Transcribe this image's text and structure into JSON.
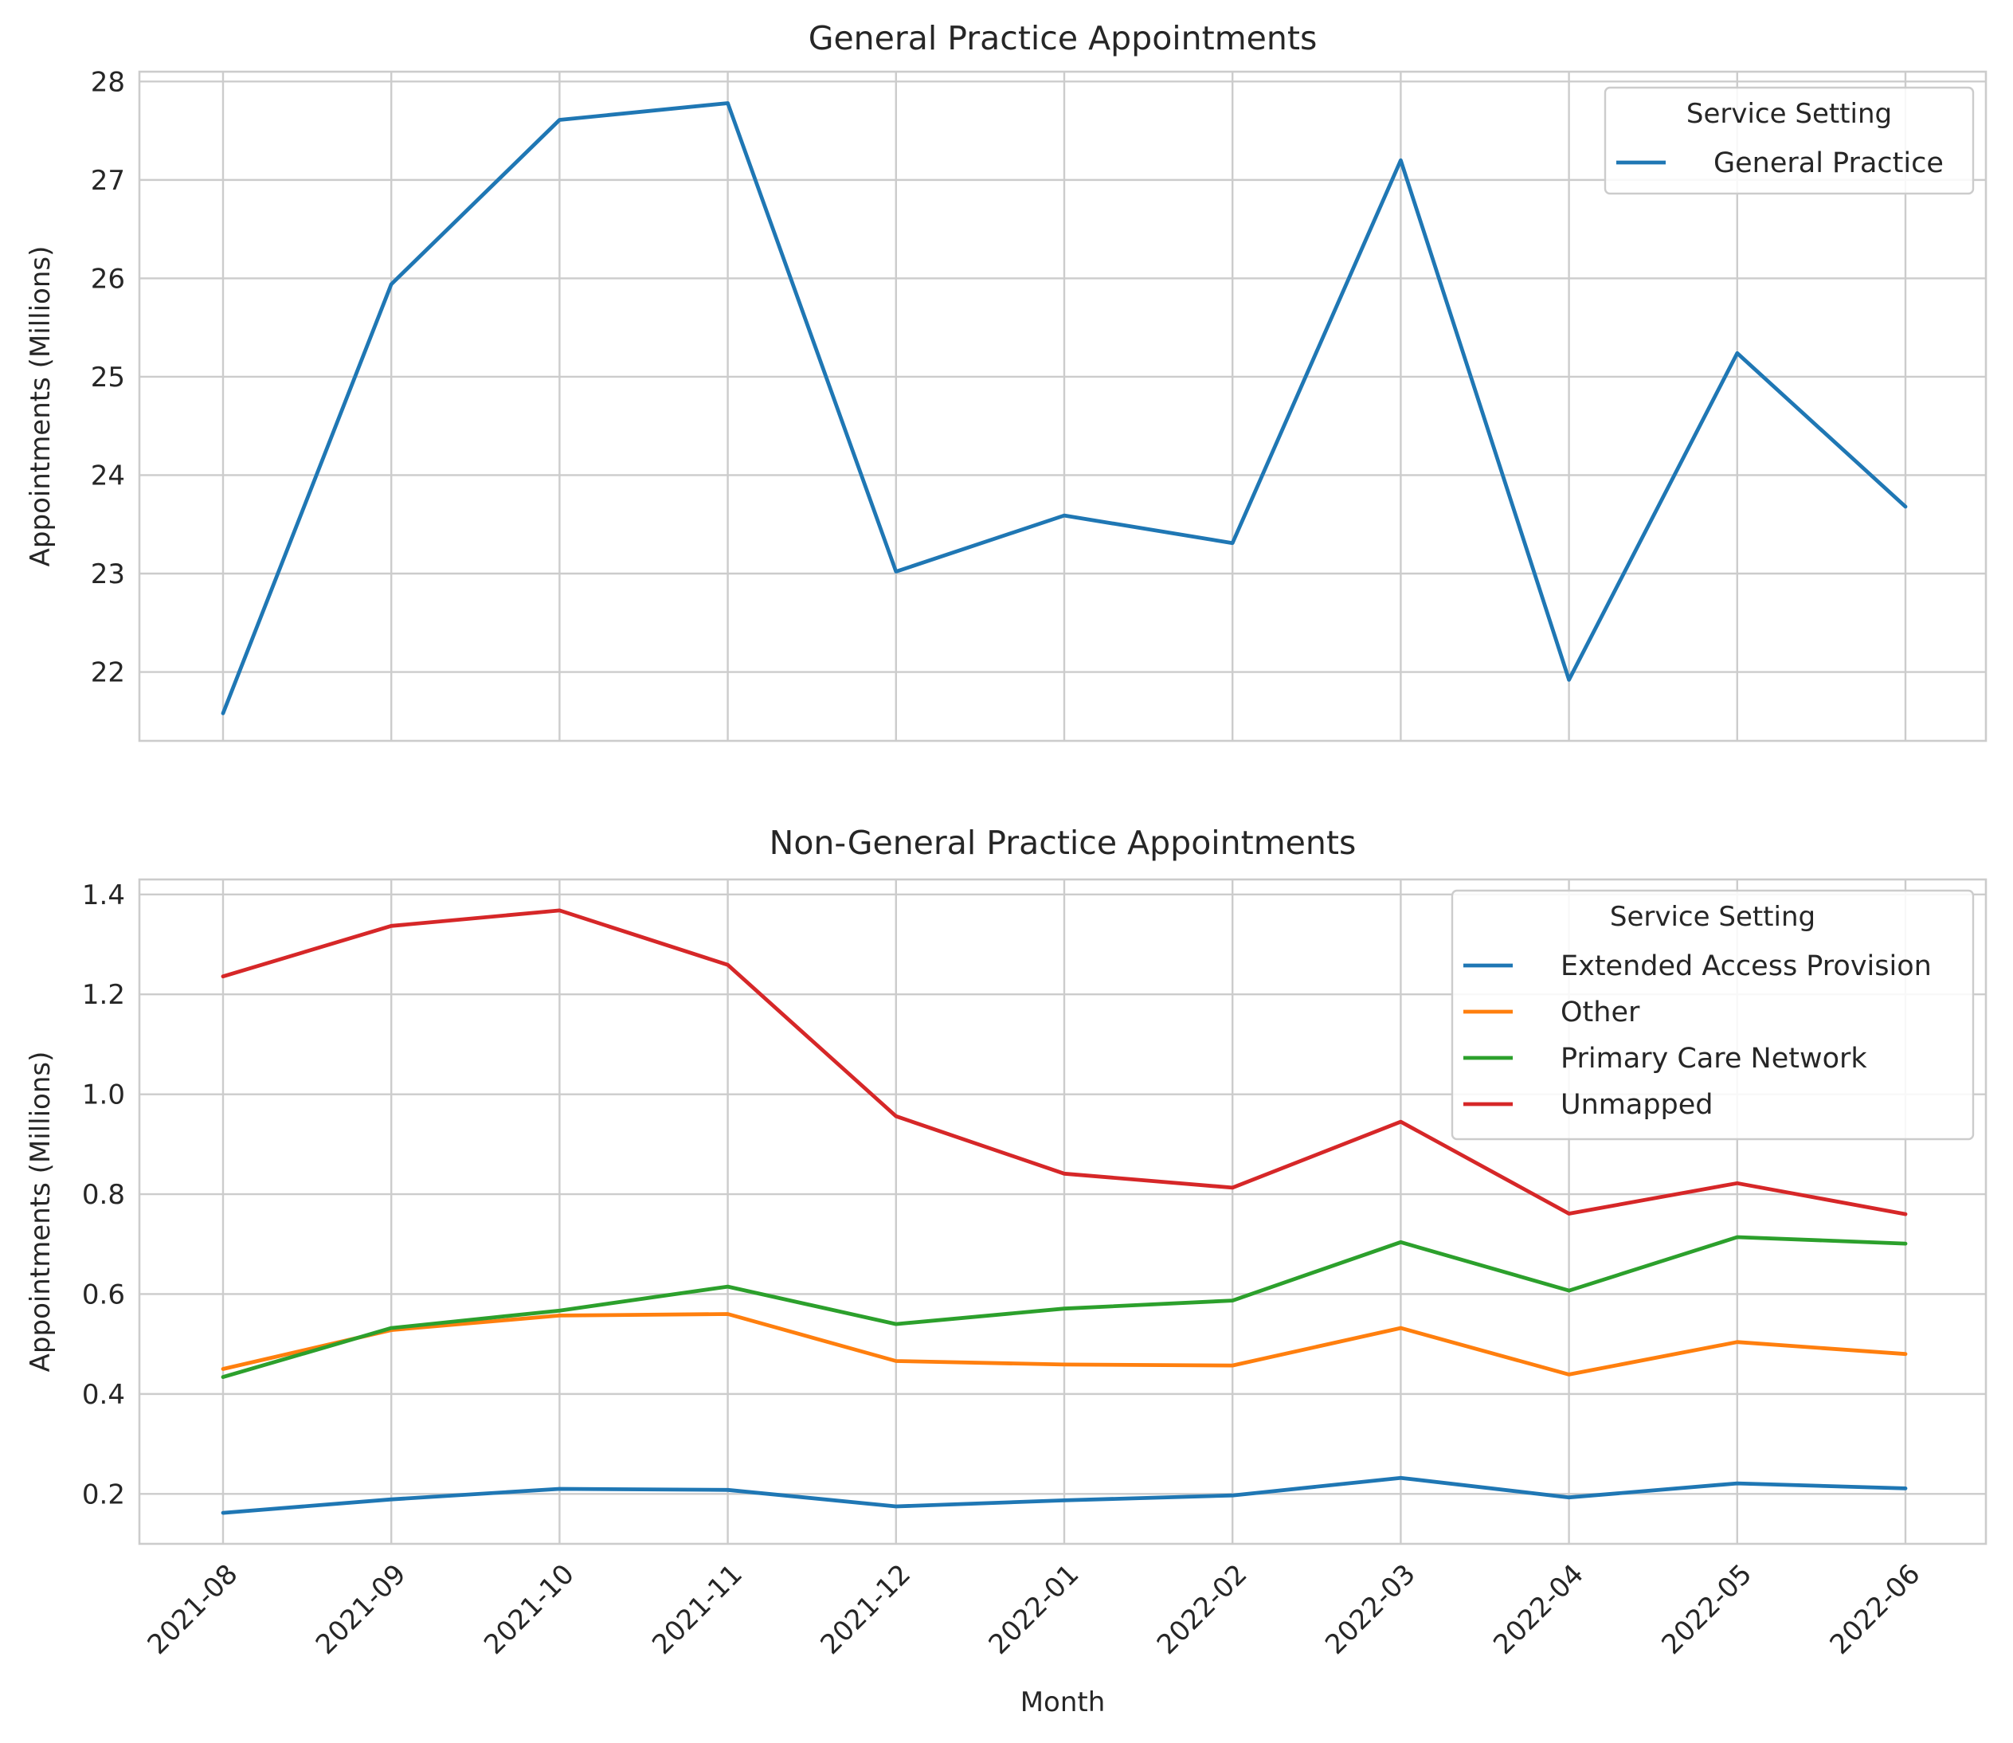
{
  "colors": {
    "blue": "#1f77b4",
    "orange": "#ff7f0e",
    "green": "#2ca02c",
    "red": "#d62728"
  },
  "chart_data": [
    {
      "type": "line",
      "title": "General Practice Appointments",
      "xlabel": "",
      "ylabel": "Appointments (Millions)",
      "categories": [
        "2021-08",
        "2021-09",
        "2021-10",
        "2021-11",
        "2021-12",
        "2022-01",
        "2022-02",
        "2022-03",
        "2022-04",
        "2022-05",
        "2022-06"
      ],
      "ylim": [
        21.3,
        28.1
      ],
      "yticks": [
        22,
        23,
        24,
        25,
        26,
        27,
        28
      ],
      "grid": true,
      "legend_title": "Service Setting",
      "legend_position": "top-right",
      "series": [
        {
          "name": "General Practice",
          "color": "#1f77b4",
          "values": [
            21.58,
            25.94,
            27.61,
            27.78,
            23.02,
            23.59,
            23.31,
            27.2,
            21.92,
            25.24,
            23.68
          ]
        }
      ]
    },
    {
      "type": "line",
      "title": "Non-General Practice Appointments",
      "xlabel": "Month",
      "ylabel": "Appointments (Millions)",
      "categories": [
        "2021-08",
        "2021-09",
        "2021-10",
        "2021-11",
        "2021-12",
        "2022-01",
        "2022-02",
        "2022-03",
        "2022-04",
        "2022-05",
        "2022-06"
      ],
      "ylim": [
        0.1,
        1.43
      ],
      "yticks": [
        0.2,
        0.4,
        0.6,
        0.8,
        1.0,
        1.2,
        1.4
      ],
      "ytick_labels": [
        "0.2",
        "0.4",
        "0.6",
        "0.8",
        "1.0",
        "1.2",
        "1.4"
      ],
      "grid": true,
      "legend_title": "Service Setting",
      "legend_position": "top-right",
      "series": [
        {
          "name": "Extended Access Provision",
          "color": "#1f77b4",
          "values": [
            0.162,
            0.189,
            0.21,
            0.208,
            0.175,
            0.187,
            0.197,
            0.232,
            0.193,
            0.221,
            0.211
          ]
        },
        {
          "name": "Other",
          "color": "#ff7f0e",
          "values": [
            0.45,
            0.528,
            0.557,
            0.56,
            0.466,
            0.459,
            0.457,
            0.532,
            0.439,
            0.504,
            0.48
          ]
        },
        {
          "name": "Primary Care Network",
          "color": "#2ca02c",
          "values": [
            0.434,
            0.532,
            0.567,
            0.615,
            0.54,
            0.571,
            0.587,
            0.704,
            0.607,
            0.714,
            0.701
          ]
        },
        {
          "name": "Unmapped",
          "color": "#d62728",
          "values": [
            1.236,
            1.337,
            1.368,
            1.259,
            0.956,
            0.841,
            0.813,
            0.945,
            0.761,
            0.822,
            0.76
          ]
        }
      ]
    }
  ]
}
